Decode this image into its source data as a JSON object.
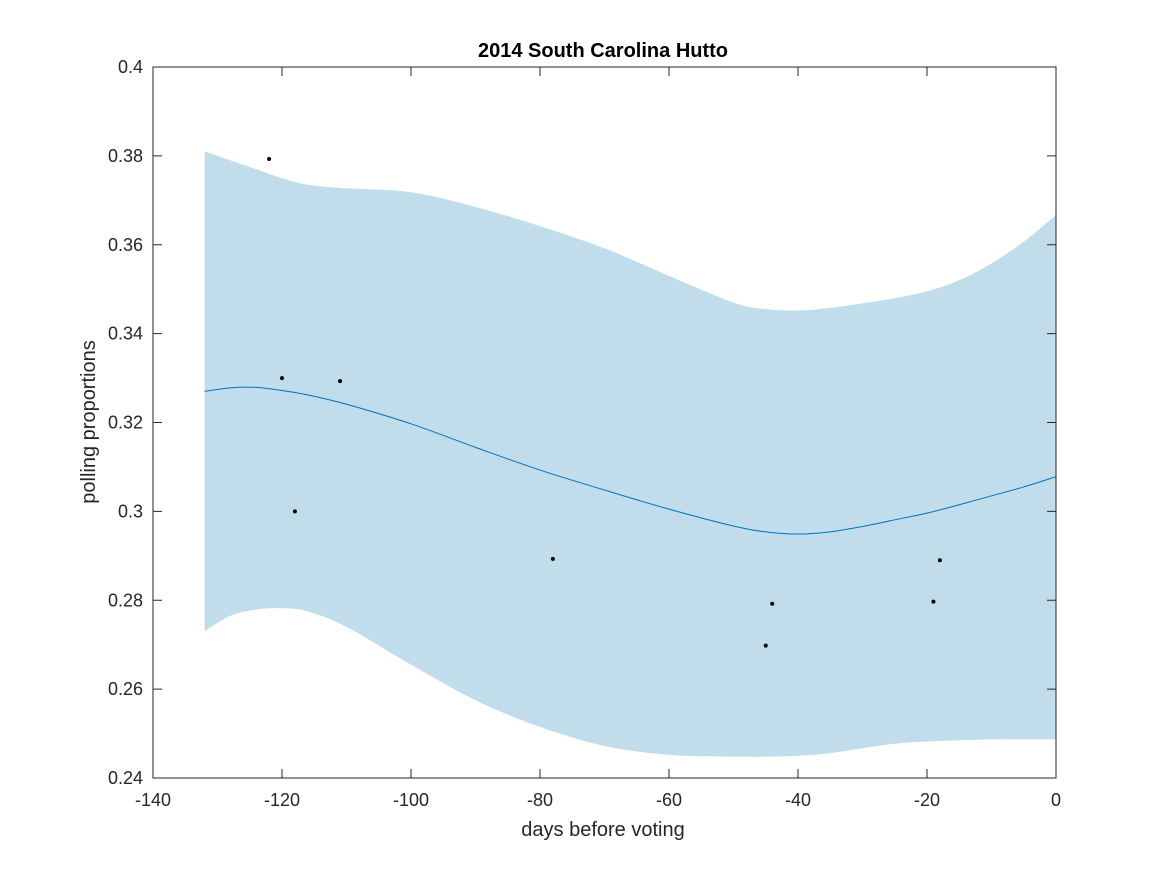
{
  "chart_data": {
    "type": "line",
    "title": "2014 South Carolina Hutto",
    "xlabel": "days before voting",
    "ylabel": "polling proportions",
    "xlim": [
      -140,
      0
    ],
    "ylim": [
      0.24,
      0.4
    ],
    "xticks": [
      -140,
      -120,
      -100,
      -80,
      -60,
      -40,
      -20,
      0
    ],
    "yticks": [
      0.24,
      0.26,
      0.28,
      0.3,
      0.32,
      0.34,
      0.36,
      0.38,
      0.4
    ],
    "xtick_labels": [
      "-140",
      "-120",
      "-100",
      "-80",
      "-60",
      "-40",
      "-20",
      "0"
    ],
    "ytick_labels": [
      "0.24",
      "0.26",
      "0.28",
      "0.3",
      "0.32",
      "0.34",
      "0.36",
      "0.38",
      "0.4"
    ],
    "grid": false,
    "colors": {
      "band": "#c1dcea",
      "line": "#0072bd",
      "points": "#000000",
      "axes": "#262626"
    },
    "trend": {
      "x": [
        -132,
        -128,
        -124,
        -120,
        -116,
        -110,
        -100,
        -90,
        -80,
        -70,
        -60,
        -50,
        -45,
        -40,
        -35,
        -30,
        -25,
        -20,
        -15,
        -10,
        -5,
        0
      ],
      "y": [
        0.327,
        0.3278,
        0.3279,
        0.3272,
        0.3262,
        0.3241,
        0.3197,
        0.3144,
        0.3093,
        0.3048,
        0.3005,
        0.2967,
        0.2954,
        0.2949,
        0.2954,
        0.2966,
        0.2981,
        0.2996,
        0.3015,
        0.3035,
        0.3055,
        0.3078
      ]
    },
    "band": {
      "x": [
        -132,
        -128,
        -124,
        -120,
        -116,
        -110,
        -100,
        -90,
        -80,
        -70,
        -60,
        -50,
        -45,
        -40,
        -35,
        -30,
        -25,
        -20,
        -15,
        -10,
        -5,
        0
      ],
      "upper": [
        0.381,
        0.379,
        0.377,
        0.375,
        0.3735,
        0.3727,
        0.3718,
        0.3685,
        0.3642,
        0.3592,
        0.353,
        0.347,
        0.3455,
        0.3452,
        0.3458,
        0.3468,
        0.348,
        0.3495,
        0.352,
        0.3558,
        0.3607,
        0.3667
      ],
      "lower": [
        0.273,
        0.2765,
        0.2779,
        0.2782,
        0.2775,
        0.274,
        0.2655,
        0.2575,
        0.2515,
        0.2472,
        0.2452,
        0.2448,
        0.2448,
        0.245,
        0.2456,
        0.2467,
        0.2477,
        0.2482,
        0.2485,
        0.2487,
        0.2487,
        0.2487
      ]
    },
    "points": [
      {
        "x": -122,
        "y": 0.3793
      },
      {
        "x": -120,
        "y": 0.33
      },
      {
        "x": -111,
        "y": 0.3293
      },
      {
        "x": -118,
        "y": 0.3
      },
      {
        "x": -78,
        "y": 0.2893
      },
      {
        "x": -44,
        "y": 0.2792
      },
      {
        "x": -45,
        "y": 0.2698
      },
      {
        "x": -18,
        "y": 0.289
      },
      {
        "x": -19,
        "y": 0.2797
      }
    ]
  }
}
